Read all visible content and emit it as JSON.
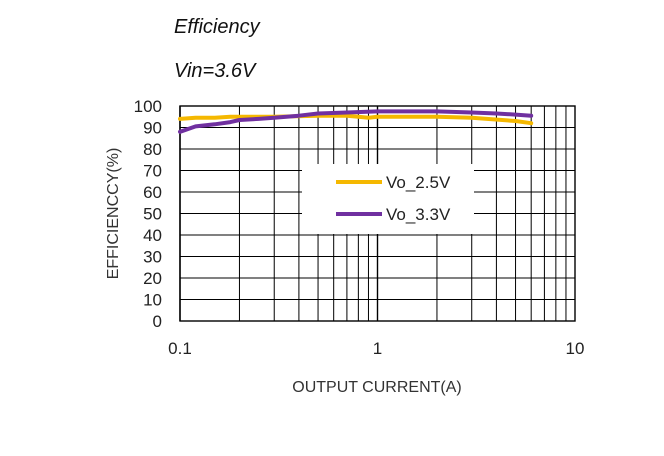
{
  "title": "Efficiency",
  "subtitle": "Vin=3.6V",
  "colors": {
    "series1": "#f5b800",
    "series2": "#7030a0",
    "grid": "#000000"
  },
  "chart_data": {
    "type": "line",
    "title": "Efficiency",
    "subtitle": "Vin=3.6V",
    "xlabel": "OUTPUT CURRENT(A)",
    "ylabel": "EFFICIENCCY(%)",
    "x_scale": "log",
    "xlim": [
      0.1,
      10
    ],
    "ylim": [
      0,
      100
    ],
    "x_ticks": [
      "0.1",
      "1",
      "10"
    ],
    "y_ticks": [
      "0",
      "10",
      "20",
      "30",
      "40",
      "50",
      "60",
      "70",
      "80",
      "90",
      "100"
    ],
    "grid": true,
    "legend_position": "center",
    "series": [
      {
        "name": "Vo_2.5V",
        "color": "#f5b800",
        "x": [
          0.1,
          0.12,
          0.15,
          0.18,
          0.2,
          0.3,
          0.5,
          0.7,
          0.8,
          0.9,
          1.0,
          2.0,
          3.0,
          5.0,
          6.0
        ],
        "y": [
          94,
          94.5,
          94.5,
          95,
          95,
          95,
          95.5,
          95.5,
          95,
          94.5,
          95,
          95,
          94.5,
          93,
          92
        ]
      },
      {
        "name": "Vo_3.3V",
        "color": "#7030a0",
        "x": [
          0.1,
          0.12,
          0.15,
          0.18,
          0.2,
          0.25,
          0.3,
          0.4,
          0.5,
          0.7,
          1.0,
          1.5,
          2.0,
          3.0,
          4.0,
          5.0,
          6.0
        ],
        "y": [
          88,
          90.5,
          91.5,
          92.5,
          93.5,
          94,
          94.5,
          95.5,
          96.5,
          97,
          97.5,
          97.5,
          97.5,
          97,
          96.5,
          96,
          95.5
        ]
      }
    ]
  }
}
